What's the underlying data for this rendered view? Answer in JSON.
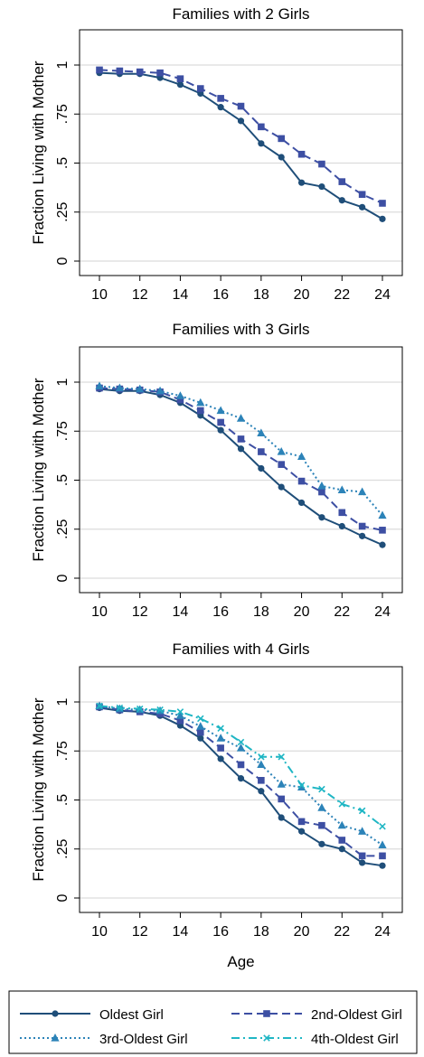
{
  "figure": {
    "xlabel": "Age",
    "ylabel": "Fraction Living with Mother",
    "legend": [
      {
        "label": "Oldest Girl",
        "color": "#1f4e79",
        "marker": "circle",
        "dash": "solid"
      },
      {
        "label": "2nd-Oldest Girl",
        "color": "#3d4fa3",
        "marker": "square",
        "dash": "dash"
      },
      {
        "label": "3rd-Oldest Girl",
        "color": "#2c83b8",
        "marker": "triangle",
        "dash": "dot"
      },
      {
        "label": "4th-Oldest Girl",
        "color": "#1fb6c4",
        "marker": "x",
        "dash": "dashdot"
      }
    ]
  },
  "chart_data": [
    {
      "type": "line",
      "title": "Families with 2 Girls",
      "ylabel": "Fraction Living with Mother",
      "xlabel": "",
      "x": [
        10,
        11,
        12,
        13,
        14,
        15,
        16,
        17,
        18,
        19,
        20,
        21,
        22,
        23,
        24
      ],
      "xticks": [
        "10",
        "12",
        "14",
        "16",
        "18",
        "20",
        "22",
        "24"
      ],
      "yticks": [
        "0",
        ".25",
        ".5",
        ".75",
        "1"
      ],
      "xlim": [
        10,
        24
      ],
      "ylim": [
        0,
        1
      ],
      "grid": true,
      "series": [
        {
          "name": "Oldest Girl",
          "values": [
            0.96,
            0.955,
            0.955,
            0.935,
            0.9,
            0.855,
            0.785,
            0.715,
            0.6,
            0.53,
            0.4,
            0.38,
            0.31,
            0.275,
            0.215
          ]
        },
        {
          "name": "2nd-Oldest Girl",
          "values": [
            0.975,
            0.97,
            0.965,
            0.96,
            0.93,
            0.88,
            0.83,
            0.79,
            0.685,
            0.625,
            0.545,
            0.495,
            0.405,
            0.34,
            0.295
          ]
        }
      ]
    },
    {
      "type": "line",
      "title": "Families with 3 Girls",
      "ylabel": "Fraction Living with Mother",
      "xlabel": "",
      "x": [
        10,
        11,
        12,
        13,
        14,
        15,
        16,
        17,
        18,
        19,
        20,
        21,
        22,
        23,
        24
      ],
      "xticks": [
        "10",
        "12",
        "14",
        "16",
        "18",
        "20",
        "22",
        "24"
      ],
      "yticks": [
        "0",
        ".25",
        ".5",
        ".75",
        "1"
      ],
      "xlim": [
        10,
        24
      ],
      "ylim": [
        0,
        1
      ],
      "grid": true,
      "series": [
        {
          "name": "Oldest Girl",
          "values": [
            0.965,
            0.955,
            0.955,
            0.935,
            0.895,
            0.83,
            0.755,
            0.66,
            0.56,
            0.465,
            0.385,
            0.31,
            0.265,
            0.215,
            0.17
          ]
        },
        {
          "name": "2nd-Oldest Girl",
          "values": [
            0.97,
            0.965,
            0.96,
            0.95,
            0.91,
            0.855,
            0.795,
            0.71,
            0.645,
            0.58,
            0.495,
            0.44,
            0.335,
            0.265,
            0.245
          ]
        },
        {
          "name": "3rd-Oldest Girl",
          "values": [
            0.98,
            0.97,
            0.965,
            0.955,
            0.93,
            0.895,
            0.855,
            0.815,
            0.74,
            0.645,
            0.62,
            0.47,
            0.45,
            0.44,
            0.32
          ]
        }
      ]
    },
    {
      "type": "line",
      "title": "Families with 4 Girls",
      "ylabel": "Fraction Living with Mother",
      "xlabel": "Age",
      "x": [
        10,
        11,
        12,
        13,
        14,
        15,
        16,
        17,
        18,
        19,
        20,
        21,
        22,
        23,
        24
      ],
      "xticks": [
        "10",
        "12",
        "14",
        "16",
        "18",
        "20",
        "22",
        "24"
      ],
      "yticks": [
        "0",
        ".25",
        ".5",
        ".75",
        "1"
      ],
      "xlim": [
        10,
        24
      ],
      "ylim": [
        0,
        1
      ],
      "grid": true,
      "series": [
        {
          "name": "Oldest Girl",
          "values": [
            0.97,
            0.955,
            0.95,
            0.93,
            0.88,
            0.815,
            0.71,
            0.61,
            0.545,
            0.41,
            0.34,
            0.275,
            0.25,
            0.18,
            0.165
          ]
        },
        {
          "name": "2nd-Oldest Girl",
          "values": [
            0.975,
            0.96,
            0.95,
            0.94,
            0.905,
            0.845,
            0.765,
            0.68,
            0.6,
            0.505,
            0.39,
            0.37,
            0.295,
            0.215,
            0.215
          ]
        },
        {
          "name": "3rd-Oldest Girl",
          "values": [
            0.98,
            0.965,
            0.96,
            0.955,
            0.93,
            0.875,
            0.815,
            0.765,
            0.68,
            0.58,
            0.565,
            0.46,
            0.37,
            0.34,
            0.27
          ]
        },
        {
          "name": "4th-Oldest Girl",
          "values": [
            0.98,
            0.97,
            0.965,
            0.96,
            0.95,
            0.915,
            0.865,
            0.795,
            0.72,
            0.72,
            0.575,
            0.555,
            0.48,
            0.445,
            0.365
          ]
        }
      ]
    }
  ]
}
